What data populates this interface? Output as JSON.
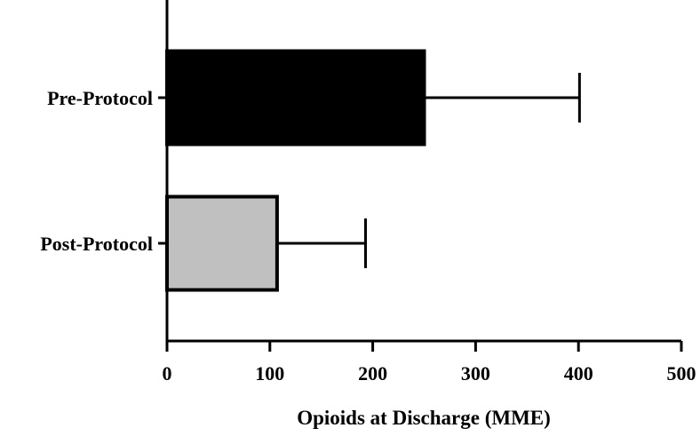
{
  "chart_data": {
    "type": "bar",
    "orientation": "horizontal",
    "title": "",
    "xlabel": "Opioids at Discharge (MME)",
    "ylabel": "",
    "xlim": [
      0,
      500
    ],
    "x_ticks": [
      "0",
      "100",
      "200",
      "300",
      "400",
      "500"
    ],
    "x_tick_values": [
      0,
      100,
      200,
      300,
      400,
      500
    ],
    "categories": [
      "Pre-Protocol",
      "Post-Protocol"
    ],
    "values": [
      250,
      107
    ],
    "error_upper": [
      401,
      193
    ],
    "bar_colors": [
      "#000000",
      "#c0c0c0"
    ],
    "grid": false,
    "legend": "none"
  }
}
